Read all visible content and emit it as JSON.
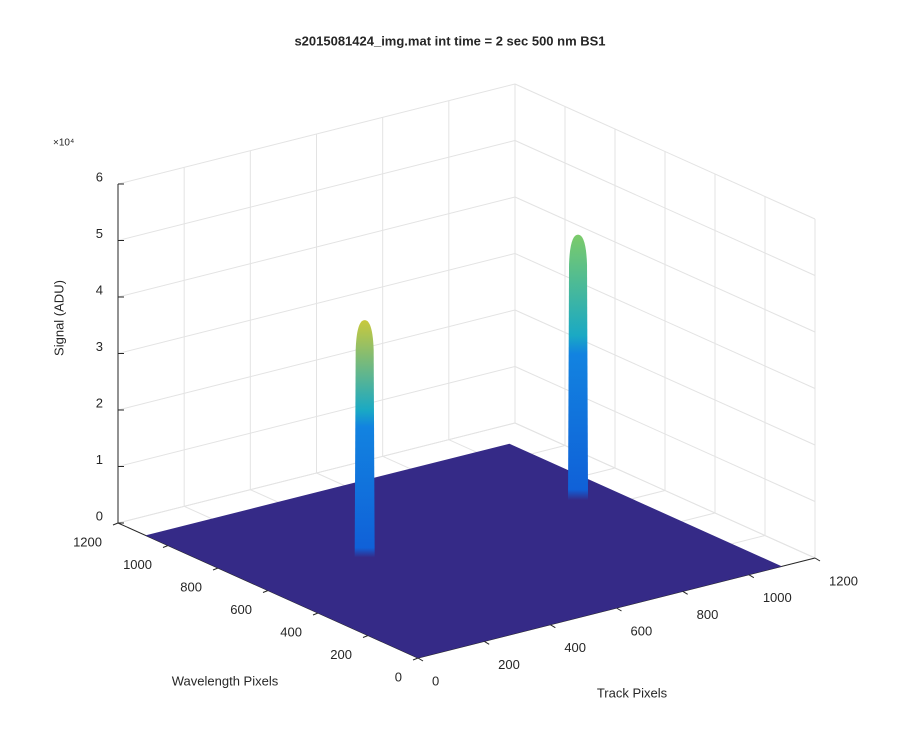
{
  "chart_data": {
    "type": "surface3d",
    "title": "s2015081424_img.mat int time = 2 sec  500 nm BS1",
    "x_label": "Track Pixels",
    "y_label": "Wavelength Pixels",
    "z_label": "Signal (ADU)",
    "z_multiplier_label": "×10⁴",
    "xlim": [
      0,
      1200
    ],
    "xticks": [
      0,
      200,
      400,
      600,
      800,
      1000,
      1200
    ],
    "ylim": [
      0,
      1200
    ],
    "yticks": [
      0,
      200,
      400,
      600,
      800,
      1000,
      1200
    ],
    "zlim": [
      0,
      6
    ],
    "zticks": [
      0,
      1,
      2,
      3,
      4,
      5,
      6
    ],
    "grid": true,
    "floor": {
      "x": [
        0,
        1100
      ],
      "y": [
        0,
        1090
      ],
      "z": 0,
      "color": "#352a87"
    },
    "peaks": [
      {
        "x": 330,
        "y": 650,
        "z": 4.2,
        "color": "#c9c93c"
      },
      {
        "x": 990,
        "y": 670,
        "z": 4.7,
        "color": "#7ccb6a"
      }
    ]
  }
}
